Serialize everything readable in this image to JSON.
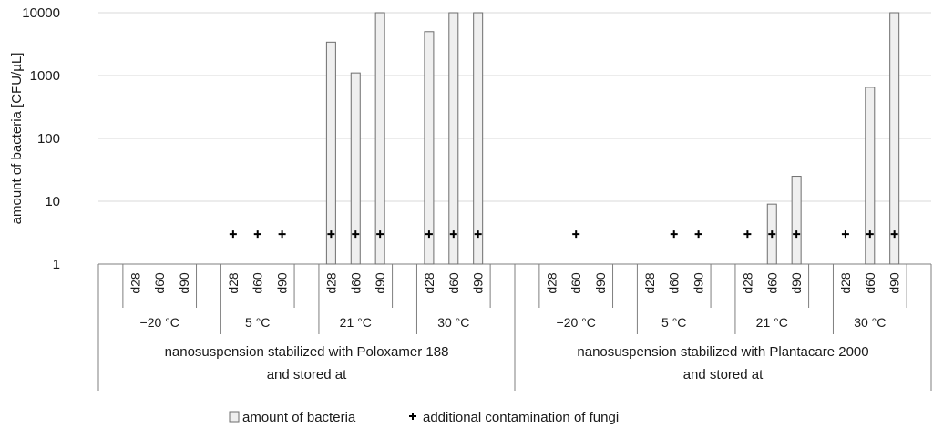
{
  "chart_data": {
    "type": "bar",
    "ylabel": "amount of bacteria [CFU/µL]",
    "yscale": "log",
    "ylim": [
      1,
      10000
    ],
    "yticks": [
      "1",
      "10",
      "100",
      "1000",
      "10000"
    ],
    "grid": true,
    "legend_position": "bottom",
    "legend": {
      "bar_label": "amount of bacteria",
      "marker_label": "additional contamination of fungi",
      "marker_symbol": "+"
    },
    "groups": [
      {
        "label": "nanosuspension stabilized with Poloxamer 188 and stored at",
        "label_lines": [
          "nanosuspension stabilized with Poloxamer 188",
          "and stored at"
        ],
        "temperatures": [
          {
            "label": "−20 °C",
            "days": [
              "d28",
              "d60",
              "d90"
            ],
            "bacteria": [
              null,
              null,
              null
            ],
            "fungi": [
              false,
              false,
              false
            ]
          },
          {
            "label": "5 °C",
            "days": [
              "d28",
              "d60",
              "d90"
            ],
            "bacteria": [
              null,
              null,
              null
            ],
            "fungi": [
              true,
              true,
              true
            ]
          },
          {
            "label": "21 °C",
            "days": [
              "d28",
              "d60",
              "d90"
            ],
            "bacteria": [
              3400,
              1100,
              10000
            ],
            "fungi": [
              true,
              true,
              true
            ]
          },
          {
            "label": "30 °C",
            "days": [
              "d28",
              "d60",
              "d90"
            ],
            "bacteria": [
              5000,
              10000,
              10000
            ],
            "fungi": [
              true,
              true,
              true
            ]
          }
        ]
      },
      {
        "label": "nanosuspension stabilized with Plantacare 2000 and stored at",
        "label_lines": [
          "nanosuspension stabilized with Plantacare 2000",
          "and stored at"
        ],
        "temperatures": [
          {
            "label": "−20 °C",
            "days": [
              "d28",
              "d60",
              "d90"
            ],
            "bacteria": [
              null,
              null,
              null
            ],
            "fungi": [
              false,
              true,
              false
            ]
          },
          {
            "label": "5 °C",
            "days": [
              "d28",
              "d60",
              "d90"
            ],
            "bacteria": [
              null,
              null,
              null
            ],
            "fungi": [
              false,
              true,
              true
            ]
          },
          {
            "label": "21 °C",
            "days": [
              "d28",
              "d60",
              "d90"
            ],
            "bacteria": [
              null,
              9,
              25
            ],
            "fungi": [
              true,
              true,
              true
            ]
          },
          {
            "label": "30 °C",
            "days": [
              "d28",
              "d60",
              "d90"
            ],
            "bacteria": [
              null,
              650,
              10000
            ],
            "fungi": [
              true,
              true,
              true
            ]
          }
        ]
      }
    ],
    "colors": {
      "bar_fill": "#efefef",
      "bar_stroke": "#6e6e6e",
      "grid": "#d9d9d9",
      "axis": "#7f7f7f",
      "marker": "#000000"
    }
  }
}
